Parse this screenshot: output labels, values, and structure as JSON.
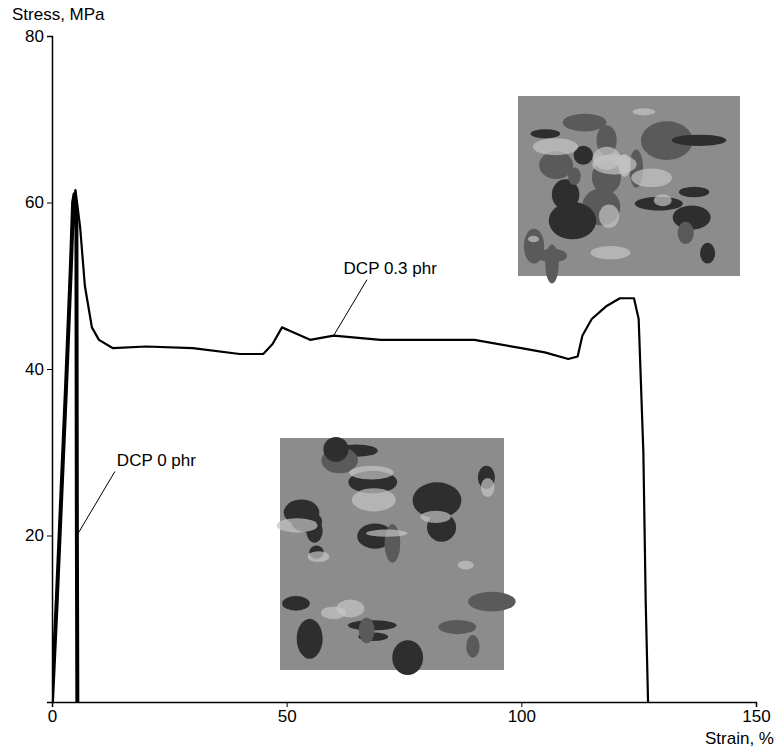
{
  "chart_data": {
    "type": "line",
    "xlabel": "Strain, %",
    "ylabel": "Stress, MPa",
    "xlim": [
      0,
      150
    ],
    "xticks": [
      0,
      50,
      100,
      150
    ],
    "ylim": [
      0,
      80
    ],
    "yticks": [
      20,
      40,
      60,
      80
    ],
    "series": [
      {
        "name": "DCP 0 phr",
        "color": "#000000",
        "x": [
          0,
          1,
          2,
          3,
          4,
          4.5,
          4.8,
          5.2,
          5.3,
          5.4
        ],
        "values": [
          0,
          12,
          25,
          38,
          52,
          60,
          61,
          58,
          20,
          0
        ]
      },
      {
        "name": "DCP 0.3 phr",
        "color": "#000000",
        "x": [
          0,
          1,
          2,
          3,
          4,
          4.5,
          5,
          6,
          7,
          8.5,
          10,
          13,
          20,
          30,
          40,
          45,
          47,
          49,
          51,
          55,
          60,
          70,
          80,
          90,
          100,
          105,
          110,
          112,
          113,
          115,
          118,
          121,
          124,
          125,
          126,
          126.5,
          127
        ],
        "values": [
          0,
          12,
          25,
          38,
          52,
          60,
          61.5,
          57,
          50,
          45,
          43.5,
          42.5,
          42.7,
          42.5,
          41.8,
          41.8,
          43,
          45,
          44.5,
          43.5,
          44,
          43.5,
          43.5,
          43.5,
          42.5,
          42,
          41.2,
          41.5,
          44,
          46,
          47.5,
          48.5,
          48.5,
          46,
          30,
          12,
          0
        ]
      }
    ]
  }
}
